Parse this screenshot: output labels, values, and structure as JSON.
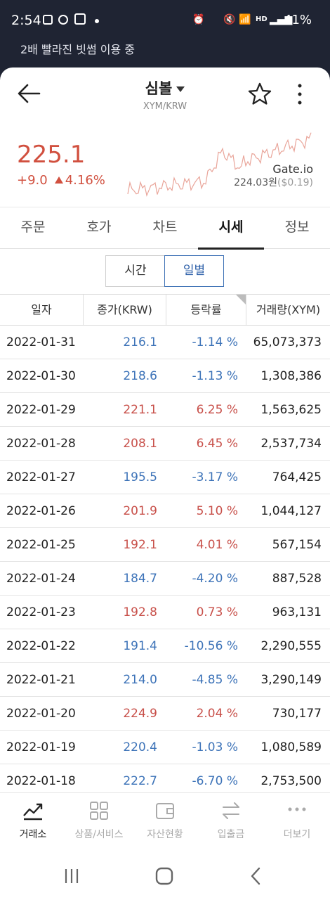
{
  "status_bar": {
    "time": "2:54",
    "battery": "41%"
  },
  "notice": "2배 빨라진 빗썸 이용 중",
  "header": {
    "title": "심볼",
    "pair": "XYM/KRW"
  },
  "quote": {
    "price": "225.1",
    "change": "+9.0",
    "change_pct": "4.16%",
    "exchange": "Gate.io",
    "exchange_price": "224.03원",
    "exchange_usd": "($0.19)"
  },
  "tabs": [
    "주문",
    "호가",
    "차트",
    "시세",
    "정보"
  ],
  "active_tab": 3,
  "segment": {
    "time": "시간",
    "daily": "일별"
  },
  "table": {
    "headers": [
      "일자",
      "종가(KRW)",
      "등락률",
      "거래량(XYM)"
    ],
    "rows": [
      {
        "date": "2022-01-31",
        "close": "216.1",
        "rate": "-1.14 %",
        "volume": "65,073,373",
        "dir": "dn"
      },
      {
        "date": "2022-01-30",
        "close": "218.6",
        "rate": "-1.13 %",
        "volume": "1,308,386",
        "dir": "dn"
      },
      {
        "date": "2022-01-29",
        "close": "221.1",
        "rate": "6.25 %",
        "volume": "1,563,625",
        "dir": "up"
      },
      {
        "date": "2022-01-28",
        "close": "208.1",
        "rate": "6.45 %",
        "volume": "2,537,734",
        "dir": "up"
      },
      {
        "date": "2022-01-27",
        "close": "195.5",
        "rate": "-3.17 %",
        "volume": "764,425",
        "dir": "dn"
      },
      {
        "date": "2022-01-26",
        "close": "201.9",
        "rate": "5.10 %",
        "volume": "1,044,127",
        "dir": "up"
      },
      {
        "date": "2022-01-25",
        "close": "192.1",
        "rate": "4.01 %",
        "volume": "567,154",
        "dir": "up"
      },
      {
        "date": "2022-01-24",
        "close": "184.7",
        "rate": "-4.20 %",
        "volume": "887,528",
        "dir": "dn"
      },
      {
        "date": "2022-01-23",
        "close": "192.8",
        "rate": "0.73 %",
        "volume": "963,131",
        "dir": "up"
      },
      {
        "date": "2022-01-22",
        "close": "191.4",
        "rate": "-10.56 %",
        "volume": "2,290,555",
        "dir": "dn"
      },
      {
        "date": "2022-01-21",
        "close": "214.0",
        "rate": "-4.85 %",
        "volume": "3,290,149",
        "dir": "dn"
      },
      {
        "date": "2022-01-20",
        "close": "224.9",
        "rate": "2.04 %",
        "volume": "730,177",
        "dir": "up"
      },
      {
        "date": "2022-01-19",
        "close": "220.4",
        "rate": "-1.03 %",
        "volume": "1,080,589",
        "dir": "dn"
      },
      {
        "date": "2022-01-18",
        "close": "222.7",
        "rate": "-6.70 %",
        "volume": "2,753,500",
        "dir": "dn"
      }
    ]
  },
  "bottom_nav": [
    {
      "label": "거래소",
      "icon": "trend-chart-icon",
      "active": true
    },
    {
      "label": "상품/서비스",
      "icon": "grid-icon",
      "active": false
    },
    {
      "label": "자산현황",
      "icon": "wallet-icon",
      "active": false
    },
    {
      "label": "입출금",
      "icon": "transfer-arrows-icon",
      "active": false
    },
    {
      "label": "더보기",
      "icon": "more-dots-icon",
      "active": false
    }
  ],
  "colors": {
    "up": "#c8504a",
    "down": "#3d73b8",
    "accent": "#3f72b6"
  }
}
